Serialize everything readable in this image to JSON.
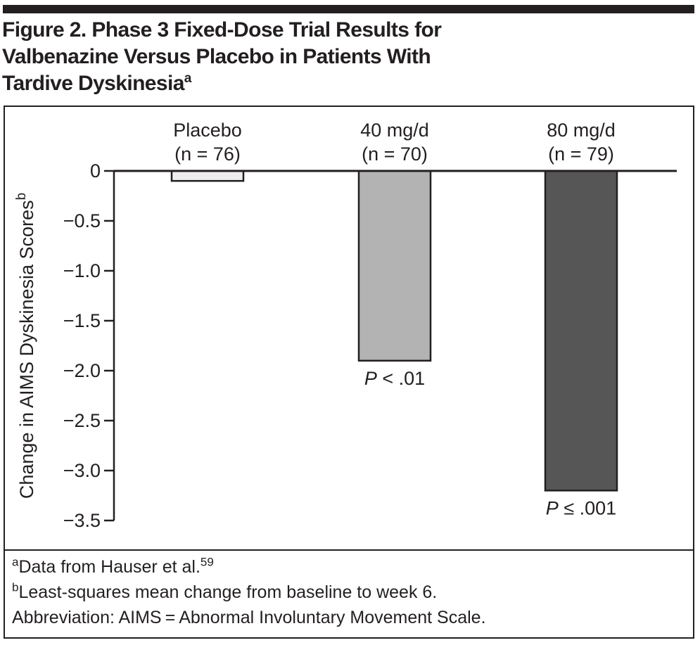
{
  "colors": {
    "ink": "#231f20",
    "placebo_bar": "#eeeeee",
    "mid_bar": "#b3b3b3",
    "dark_bar": "#565656"
  },
  "title": {
    "line1": "Figure 2. Phase 3 Fixed-Dose Trial Results for",
    "line2": "Valbenazine Versus Placebo in Patients With",
    "line3": "Tardive Dyskinesia",
    "line3_sup": "a"
  },
  "chart_data": {
    "type": "bar",
    "categories": [
      "Placebo",
      "40 mg/d",
      "80 mg/d"
    ],
    "n_labels": [
      "(n = 76)",
      "(n = 70)",
      "(n = 79)"
    ],
    "values": [
      -0.1,
      -1.9,
      -3.2
    ],
    "p_labels": [
      null,
      {
        "italic": "P",
        "rest": " < .01"
      },
      {
        "italic": "P",
        "rest": " ≤ .001"
      }
    ],
    "bar_colors": [
      "#eeeeee",
      "#b3b3b3",
      "#565656"
    ],
    "title": "",
    "xlabel": "",
    "ylabel": "Change in AIMS Dyskinesia Scores",
    "ylabel_sup": "b",
    "ylim": [
      -3.5,
      0
    ],
    "ytick_values": [
      0,
      -0.5,
      -1.0,
      -1.5,
      -2.0,
      -2.5,
      -3.0,
      -3.5
    ],
    "ytick_labels": [
      "0",
      "−0.5",
      "−1.0",
      "−1.5",
      "−2.0",
      "−2.5",
      "−3.0",
      "−3.5"
    ],
    "grid": false,
    "legend": "none"
  },
  "footnotes": [
    {
      "sup": "a",
      "text": "Data from Hauser et al.",
      "sup_end": "59"
    },
    {
      "sup": "b",
      "text": "Least-squares mean change from baseline to week 6.",
      "sup_end": ""
    },
    {
      "sup": "",
      "text": "Abbreviation: AIMS = Abnormal Involuntary Movement Scale.",
      "sup_end": ""
    }
  ]
}
